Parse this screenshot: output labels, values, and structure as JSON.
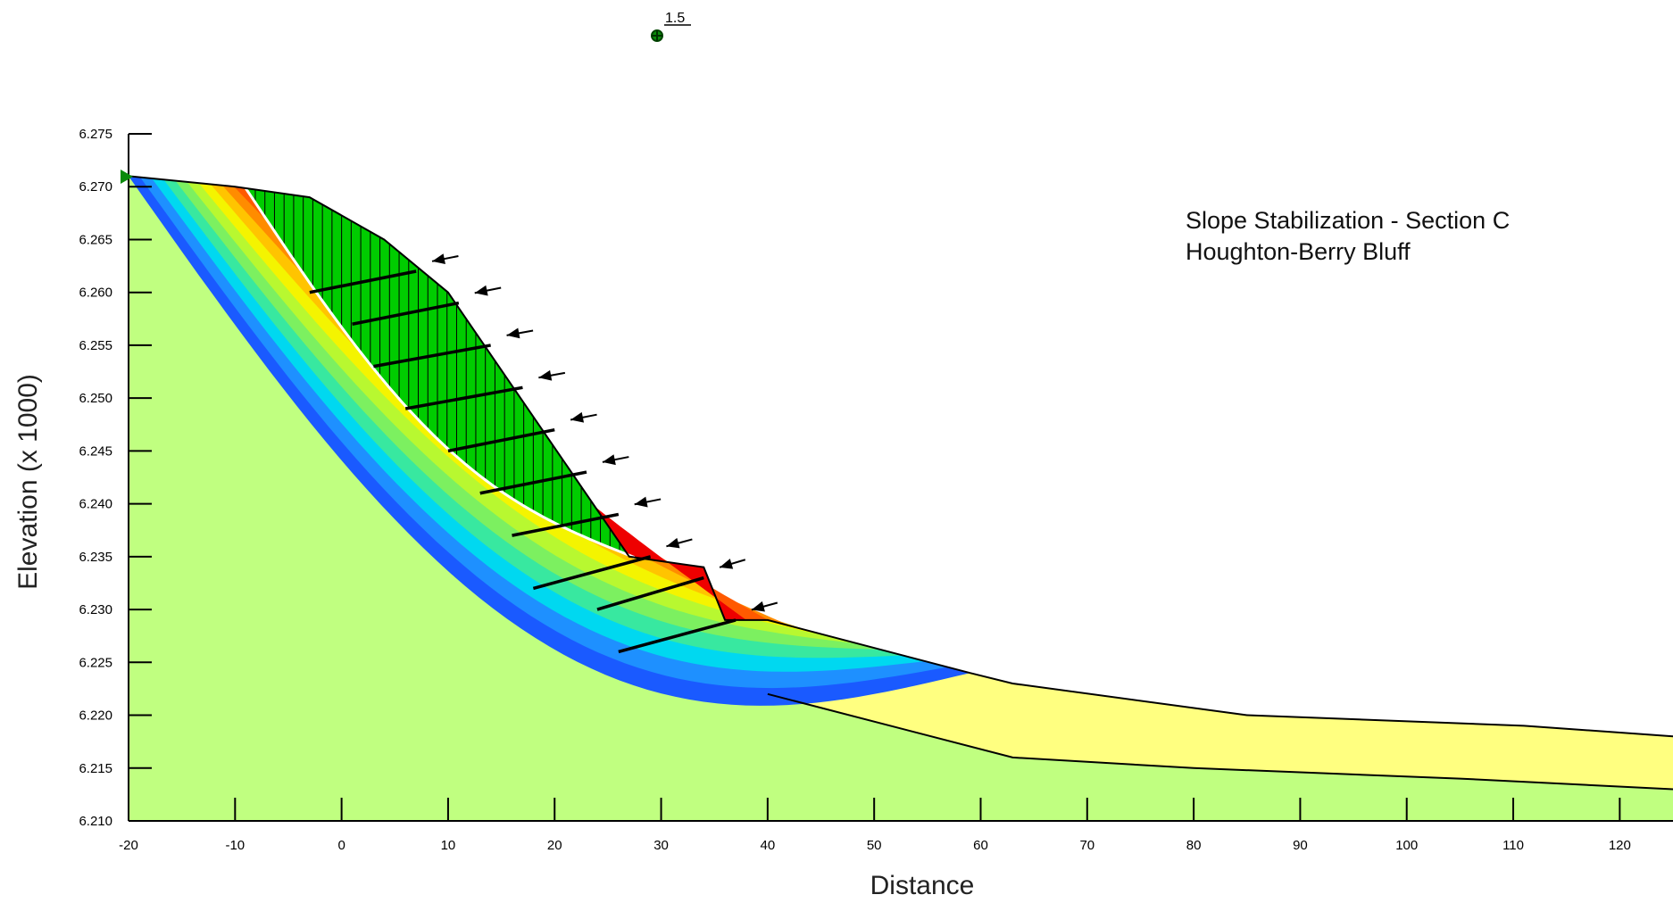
{
  "chart_data": {
    "type": "slope_stability_section",
    "xlabel": "Distance",
    "ylabel": "Elevation (x  1000)",
    "x_ticks": [
      -20,
      -10,
      0,
      10,
      20,
      30,
      40,
      50,
      60,
      70,
      80,
      90,
      100,
      110,
      120
    ],
    "y_ticks": [
      "6.210",
      "6.215",
      "6.220",
      "6.225",
      "6.230",
      "6.235",
      "6.240",
      "6.245",
      "6.250",
      "6.255",
      "6.260",
      "6.265",
      "6.270",
      "6.275"
    ],
    "xlim": [
      -20,
      125
    ],
    "ylim": [
      6210,
      6275
    ],
    "grid": false,
    "annotation": [
      "Slope Stabilization - Section C",
      "Houghton-Berry Bluff"
    ],
    "factor_of_safety": "1.5",
    "ground_surface": [
      [
        -20,
        6271
      ],
      [
        -10,
        6270
      ],
      [
        -3,
        6269
      ],
      [
        4,
        6265
      ],
      [
        10,
        6260
      ],
      [
        27,
        6235
      ],
      [
        34,
        6234
      ],
      [
        36,
        6229
      ],
      [
        40,
        6229
      ],
      [
        59,
        6224
      ],
      [
        63,
        6223
      ],
      [
        85,
        6220
      ],
      [
        111,
        6219
      ],
      [
        125,
        6218
      ]
    ],
    "fill_layer_base": [
      [
        40,
        6222
      ],
      [
        63,
        6216
      ],
      [
        80,
        6215
      ],
      [
        105,
        6214
      ],
      [
        125,
        6213
      ]
    ],
    "anchors": [
      {
        "x1": -3,
        "y1": 6260,
        "x2": 7,
        "y2": 6262
      },
      {
        "x1": 1,
        "y1": 6257,
        "x2": 11,
        "y2": 6259
      },
      {
        "x1": 3,
        "y1": 6253,
        "x2": 14,
        "y2": 6255
      },
      {
        "x1": 6,
        "y1": 6249,
        "x2": 17,
        "y2": 6251
      },
      {
        "x1": 10,
        "y1": 6245,
        "x2": 20,
        "y2": 6247
      },
      {
        "x1": 13,
        "y1": 6241,
        "x2": 23,
        "y2": 6243
      },
      {
        "x1": 16,
        "y1": 6237,
        "x2": 26,
        "y2": 6239
      },
      {
        "x1": 18,
        "y1": 6232,
        "x2": 29,
        "y2": 6235
      },
      {
        "x1": 24,
        "y1": 6230,
        "x2": 34,
        "y2": 6233
      },
      {
        "x1": 26,
        "y1": 6226,
        "x2": 37,
        "y2": 6229
      }
    ],
    "colors": {
      "foundation": "#c0ff80",
      "fill_layer": "#ffff80",
      "critical_slip_mass": "#00cc00",
      "fs_bands": [
        "#1a5aff",
        "#1e90ff",
        "#00d8f0",
        "#38e8a0",
        "#7cf060",
        "#b8f830",
        "#f4f400",
        "#ffc400",
        "#ff8c00",
        "#ff5a00",
        "#ee0000"
      ],
      "boundary": "#000000"
    }
  }
}
